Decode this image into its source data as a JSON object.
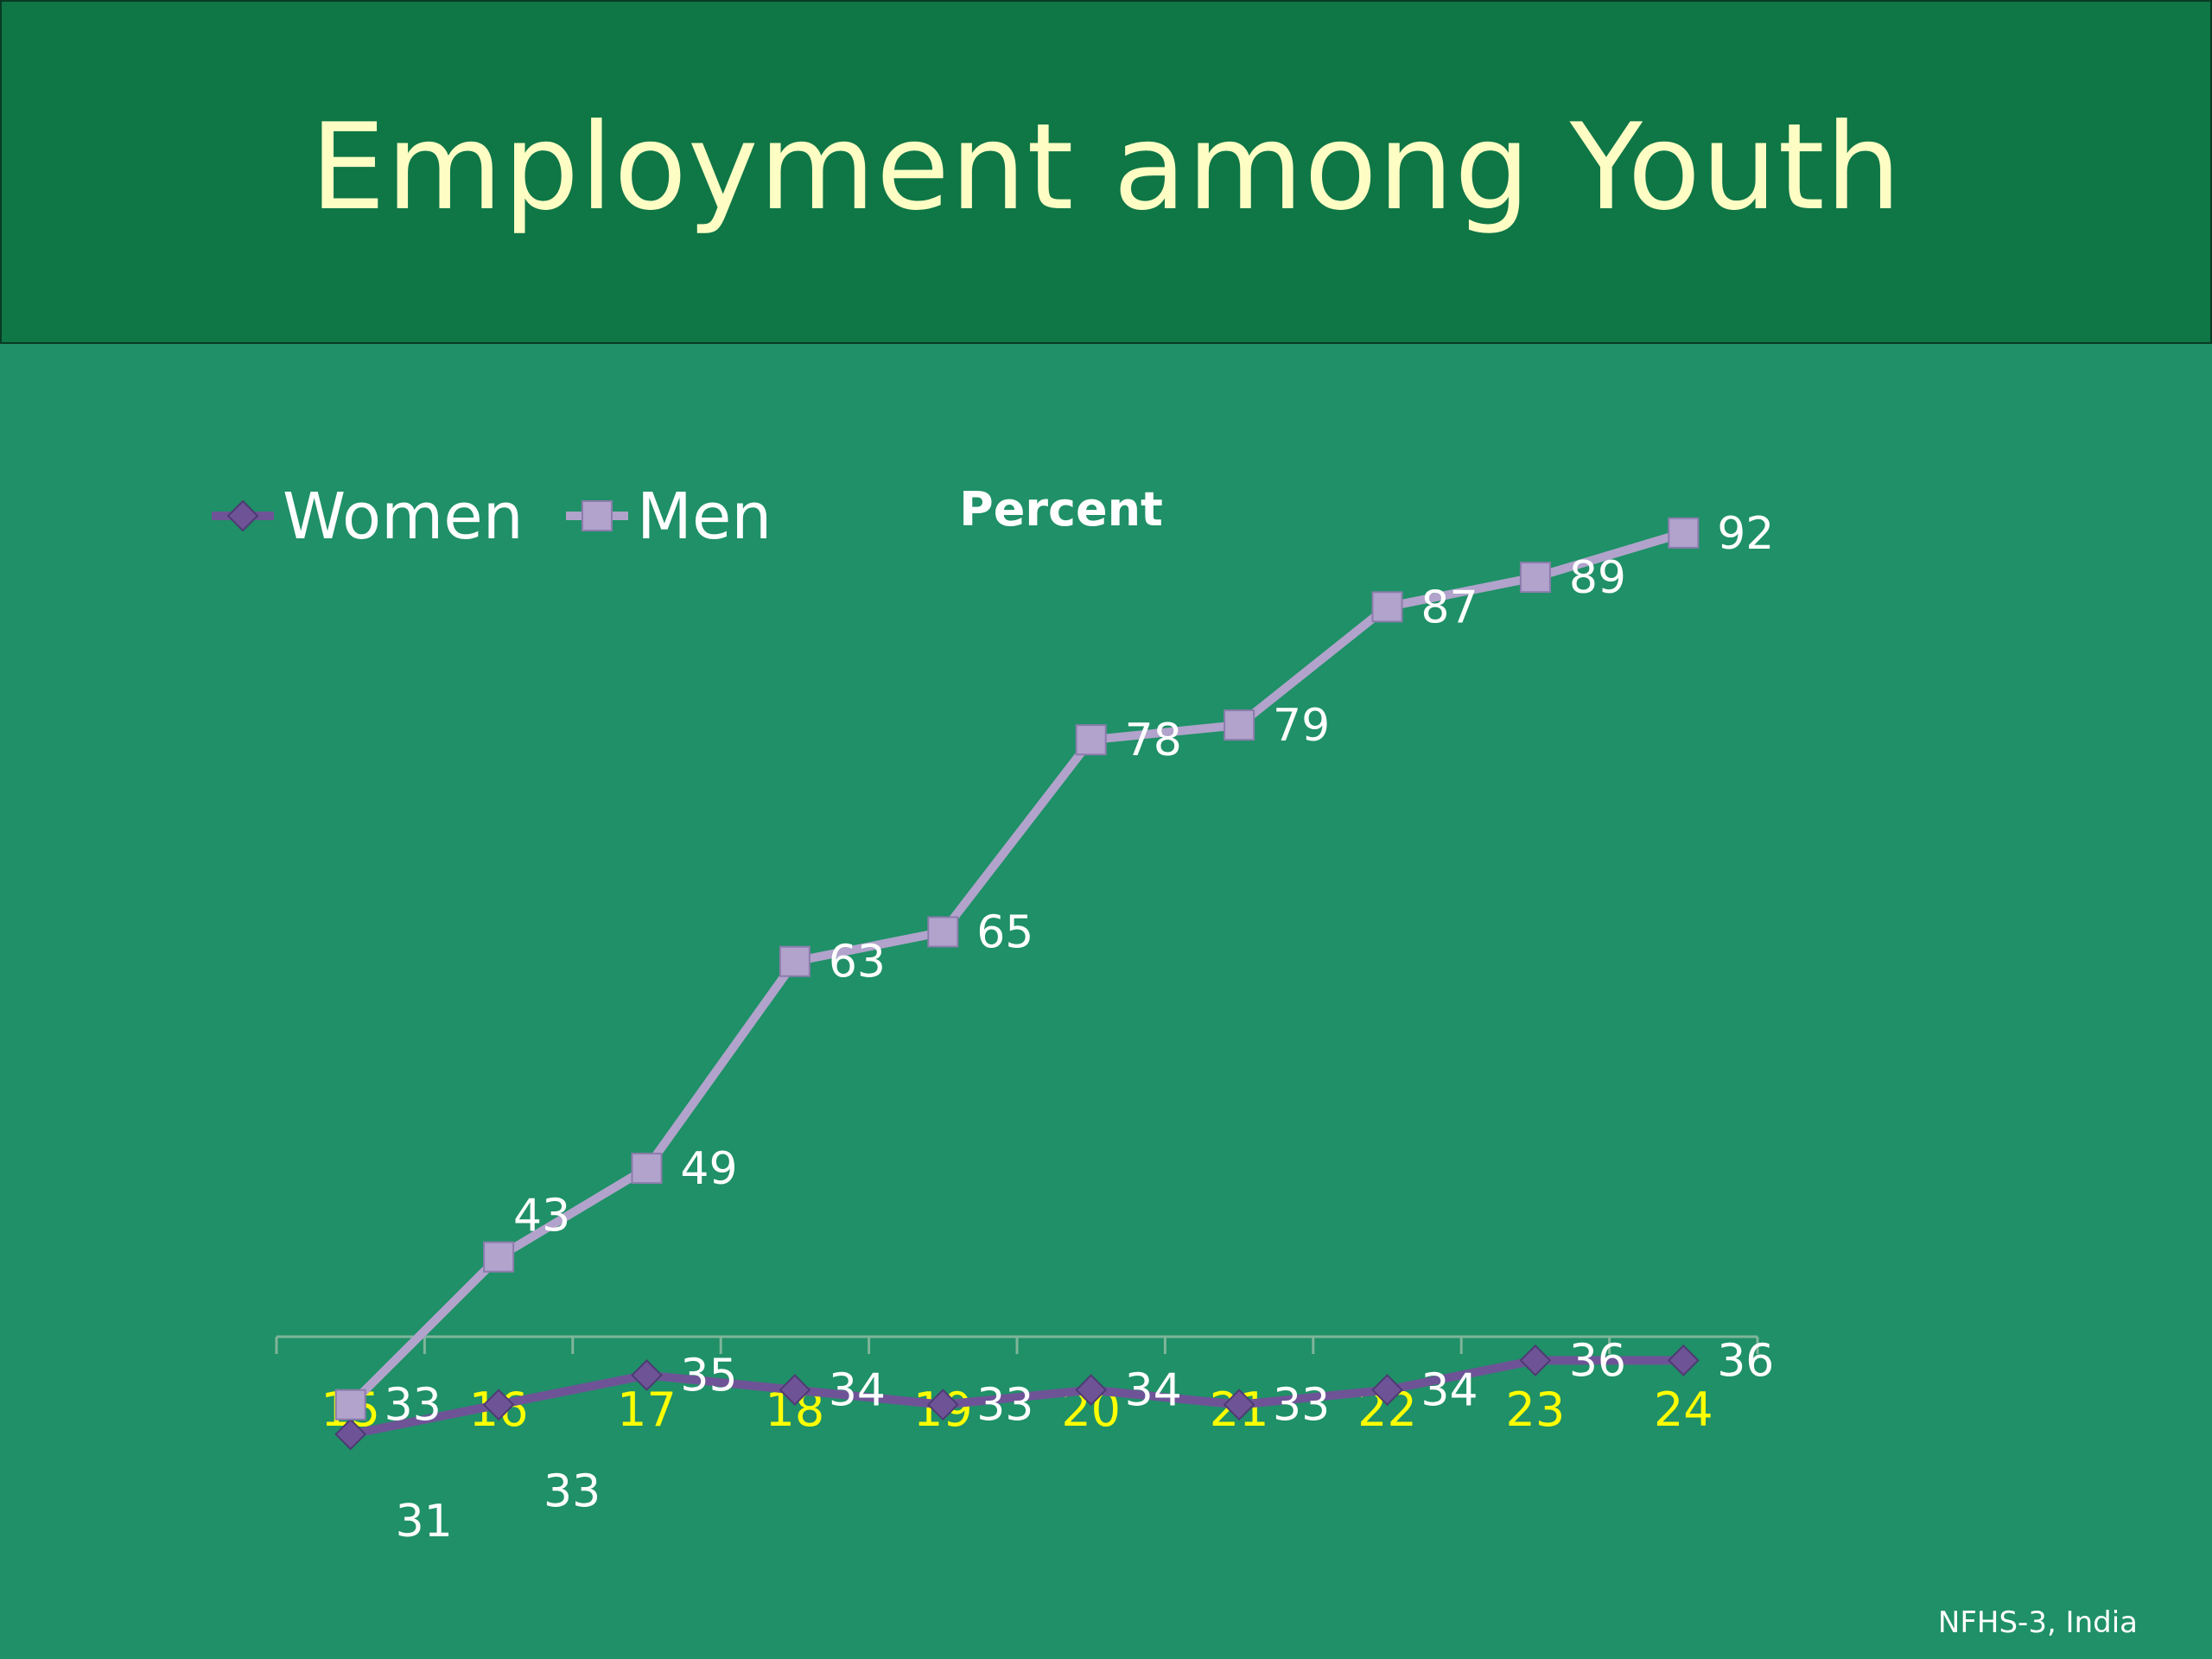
{
  "title": "Employment among Youth",
  "source_note": "NFHS-3, India",
  "colors": {
    "background": "#1f9067",
    "title_bar": "#0f7646",
    "title_text": "#fdfdc4",
    "women": "#6e5497",
    "men": "#b1a3cb",
    "tick_labels": "#ffff00",
    "data_labels": "#ffffff"
  },
  "chart_data": {
    "type": "line",
    "title": "Percent",
    "xlabel": "",
    "ylabel": "",
    "categories": [
      "15",
      "16",
      "17",
      "18",
      "19",
      "20",
      "21",
      "22",
      "23",
      "24"
    ],
    "ylim": [
      0,
      100
    ],
    "grid": false,
    "legend": "top-left",
    "series": [
      {
        "name": "Women",
        "marker": "diamond",
        "values": [
          31,
          33,
          35,
          34,
          33,
          34,
          33,
          34,
          36,
          36
        ]
      },
      {
        "name": "Men",
        "marker": "square",
        "values": [
          33,
          43,
          49,
          63,
          65,
          78,
          79,
          87,
          89,
          92
        ]
      }
    ]
  }
}
